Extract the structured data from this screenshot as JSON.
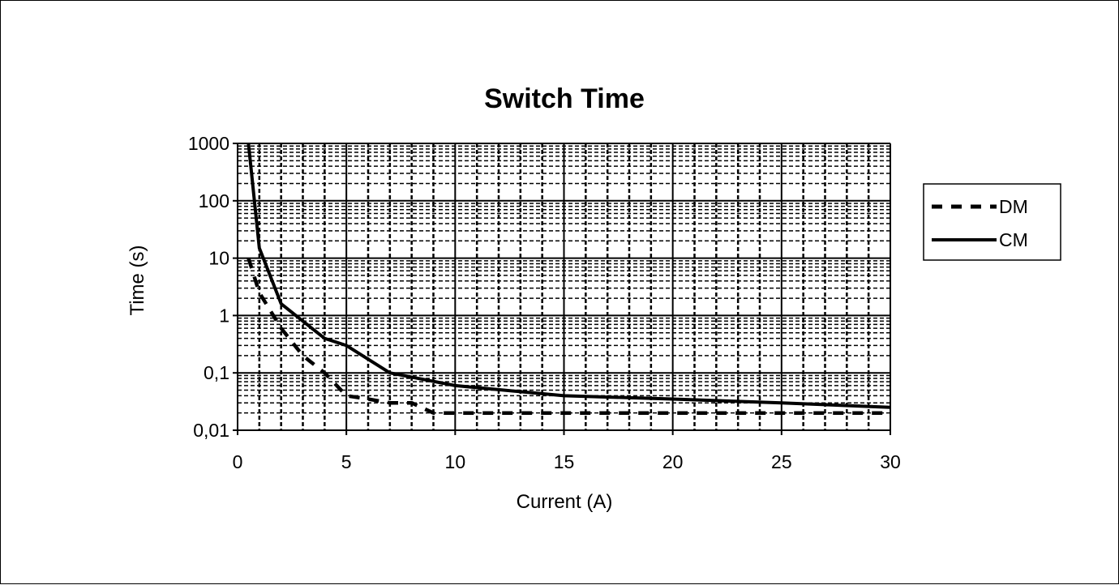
{
  "chart_data": {
    "type": "line",
    "title": "Switch Time",
    "xlabel": "Current (A)",
    "ylabel": "Time (s)",
    "x_scale": "linear",
    "y_scale": "log",
    "xlim": [
      0,
      30
    ],
    "ylim": [
      0.01,
      1000
    ],
    "x_ticks": [
      "0",
      "5",
      "10",
      "15",
      "20",
      "25",
      "30"
    ],
    "y_ticks": [
      "0,01",
      "0,1",
      "1",
      "10",
      "100",
      "1000"
    ],
    "grid": true,
    "legend_position": "right",
    "series": [
      {
        "name": "DM",
        "line_style": "dashed",
        "color": "#000000",
        "x": [
          0.5,
          1,
          2,
          3,
          4,
          5,
          6,
          7,
          8,
          9,
          10,
          15,
          20,
          25,
          30
        ],
        "y": [
          10,
          2.5,
          0.6,
          0.2,
          0.1,
          0.04,
          0.035,
          0.03,
          0.03,
          0.02,
          0.02,
          0.02,
          0.02,
          0.02,
          0.02
        ]
      },
      {
        "name": "CM",
        "line_style": "solid",
        "color": "#000000",
        "x": [
          0.5,
          1,
          2,
          3,
          4,
          5,
          7,
          10,
          15,
          20,
          25,
          30
        ],
        "y": [
          1000,
          15,
          1.6,
          0.8,
          0.4,
          0.3,
          0.1,
          0.06,
          0.04,
          0.035,
          0.03,
          0.025
        ]
      }
    ]
  }
}
